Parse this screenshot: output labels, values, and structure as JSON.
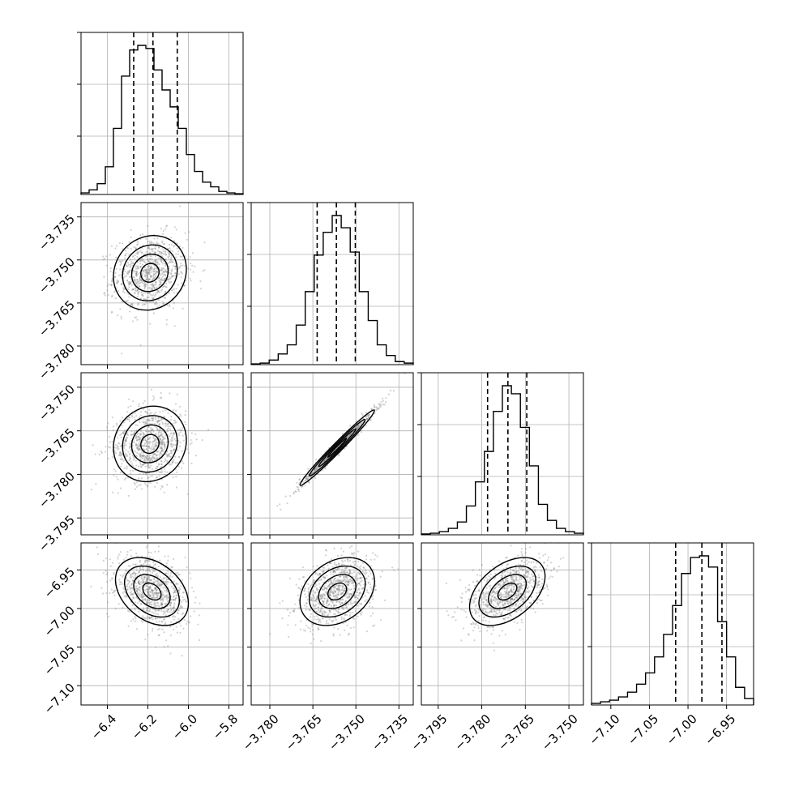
{
  "chart_data": {
    "type": "corner",
    "title": "",
    "n_parameters": 4,
    "parameter_labels": [
      "",
      "",
      "",
      ""
    ],
    "bottom_ticks": [
      [
        "−6.4",
        "−6.2",
        "−6.0",
        "−5.8"
      ],
      [
        "−3.780",
        "−3.765",
        "−3.750",
        "−3.735"
      ],
      [
        "−3.795",
        "−3.780",
        "−3.765",
        "−3.750"
      ],
      [
        "−7.10",
        "−7.05",
        "−7.00",
        "−6.95"
      ]
    ],
    "left_ticks": [
      [],
      [
        "−3.735",
        "−3.750",
        "−3.765",
        "−3.780"
      ],
      [
        "−3.750",
        "−3.765",
        "−3.780",
        "−3.795"
      ],
      [
        "−6.95",
        "−7.00",
        "−7.05",
        "−7.10"
      ]
    ],
    "marginals": [
      {
        "param": 0,
        "xlim": [
          -6.53,
          -5.73
        ],
        "quantiles": [
          -6.27,
          -6.175,
          -6.055
        ],
        "histogram": [
          0.01,
          0.03,
          0.07,
          0.18,
          0.43,
          0.77,
          0.94,
          0.97,
          0.95,
          0.81,
          0.68,
          0.57,
          0.43,
          0.26,
          0.15,
          0.08,
          0.05,
          0.02,
          0.01,
          0.005
        ]
      },
      {
        "param": 1,
        "xlim": [
          -3.7865,
          -3.73
        ],
        "quantiles": [
          -3.7635,
          -3.7568,
          -3.7502
        ],
        "histogram": [
          0.005,
          0.01,
          0.03,
          0.07,
          0.13,
          0.26,
          0.48,
          0.72,
          0.87,
          0.98,
          0.9,
          0.74,
          0.48,
          0.29,
          0.13,
          0.06,
          0.02,
          0.01
        ]
      },
      {
        "param": 2,
        "xlim": [
          -3.8008,
          -3.745
        ],
        "quantiles": [
          -3.778,
          -3.771,
          -3.7645
        ],
        "histogram": [
          0.005,
          0.01,
          0.02,
          0.04,
          0.08,
          0.18,
          0.33,
          0.52,
          0.77,
          0.93,
          0.88,
          0.67,
          0.43,
          0.19,
          0.09,
          0.04,
          0.02,
          0.01
        ]
      },
      {
        "param": 3,
        "xlim": [
          -7.125,
          -6.915
        ],
        "quantiles": [
          -7.016,
          -6.982,
          -6.956
        ],
        "histogram": [
          0.01,
          0.02,
          0.03,
          0.05,
          0.08,
          0.13,
          0.2,
          0.3,
          0.44,
          0.62,
          0.82,
          0.92,
          0.93,
          0.86,
          0.52,
          0.3,
          0.11,
          0.04
        ]
      }
    ],
    "joint_panels": [
      {
        "x_param": 0,
        "y_param": 1,
        "ylim": [
          -3.7865,
          -3.73
        ],
        "center": [
          -6.19,
          -3.7545
        ],
        "std": [
          0.09,
          0.0065
        ],
        "rho": 0.1
      },
      {
        "x_param": 0,
        "y_param": 2,
        "ylim": [
          -3.8008,
          -3.745
        ],
        "center": [
          -6.19,
          -3.7695
        ],
        "std": [
          0.09,
          0.0065
        ],
        "rho": 0.1
      },
      {
        "x_param": 1,
        "y_param": 2,
        "ylim": [
          -3.8008,
          -3.745
        ],
        "center": [
          -3.7565,
          -3.7708
        ],
        "std": [
          0.0065,
          0.0065
        ],
        "rho": 0.985
      },
      {
        "x_param": 0,
        "y_param": 3,
        "ylim": [
          -7.125,
          -6.915
        ],
        "center": [
          -6.18,
          -6.978
        ],
        "std": [
          0.09,
          0.022
        ],
        "rho": -0.35
      },
      {
        "x_param": 1,
        "y_param": 3,
        "ylim": [
          -7.125,
          -6.915
        ],
        "center": [
          -3.7565,
          -6.978
        ],
        "std": [
          0.0065,
          0.022
        ],
        "rho": 0.3
      },
      {
        "x_param": 2,
        "y_param": 3,
        "ylim": [
          -7.125,
          -6.915
        ],
        "center": [
          -3.7712,
          -6.978
        ],
        "std": [
          0.0065,
          0.022
        ],
        "rho": 0.45
      }
    ],
    "grid": true,
    "style": {
      "line_color": "#000000",
      "grid_color": "#b0b0b0",
      "scatter_color": "#7f7f7f",
      "density_dark": "#303030"
    }
  }
}
